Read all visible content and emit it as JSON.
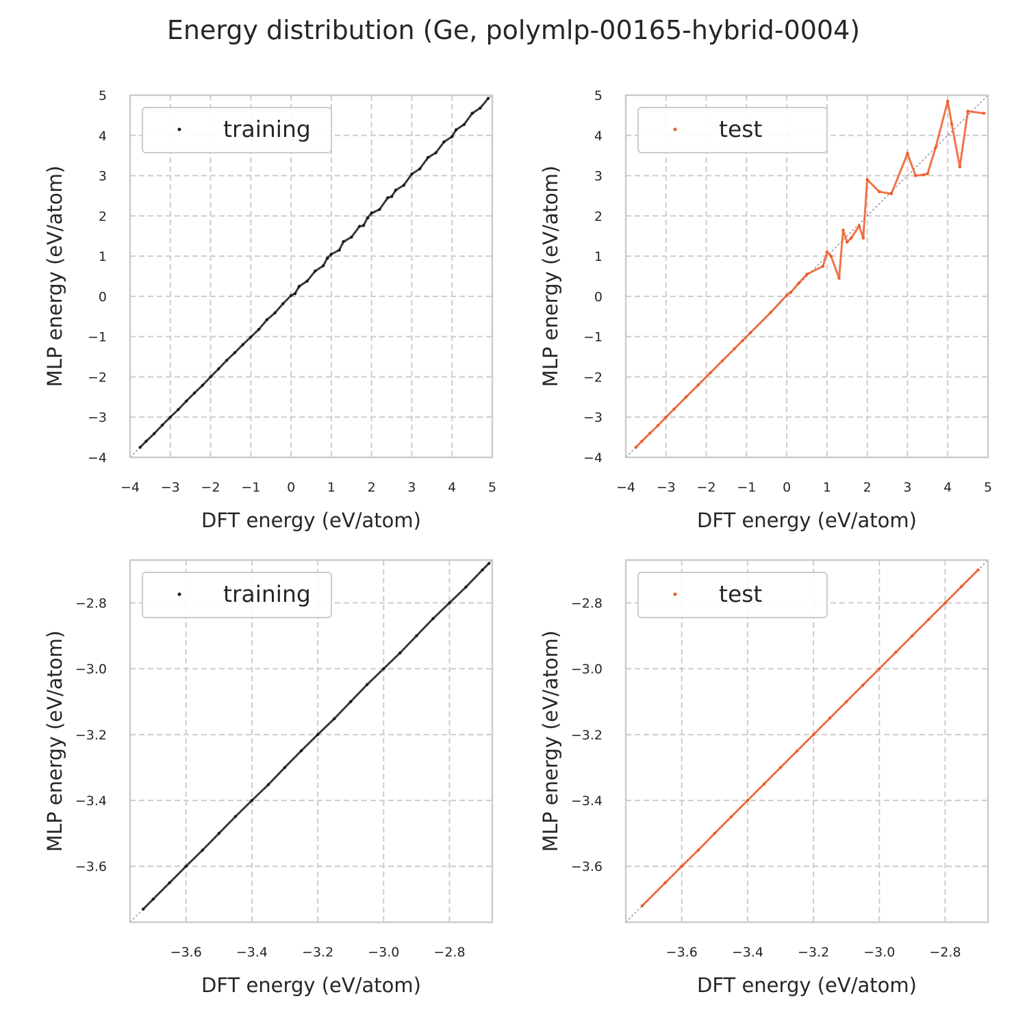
{
  "figure": {
    "title": "Energy distribution (Ge, polymlp-00165-hybrid-0004)"
  },
  "colors": {
    "training": "#1a1a1a",
    "test": "#f05a28",
    "grid": "#cccccc",
    "frame": "#cccccc",
    "diagonal": "#666666"
  },
  "chart_data": [
    {
      "type": "scatter",
      "panel": "top-left",
      "xlabel": "DFT energy (eV/atom)",
      "ylabel": "MLP energy (eV/atom)",
      "xlim": [
        -4,
        5
      ],
      "ylim": [
        -4,
        5
      ],
      "xticks": [
        -4,
        -3,
        -2,
        -1,
        0,
        1,
        2,
        3,
        4,
        5
      ],
      "yticks": [
        -4,
        -3,
        -2,
        -1,
        0,
        1,
        2,
        3,
        4,
        5
      ],
      "xtick_labels": [
        "−4",
        "−3",
        "−2",
        "−1",
        "0",
        "1",
        "2",
        "3",
        "4",
        "5"
      ],
      "ytick_labels": [
        "−4",
        "−3",
        "−2",
        "−1",
        "0",
        "1",
        "2",
        "3",
        "4",
        "5"
      ],
      "grid": true,
      "legend_position": "upper-left",
      "diagonal": true,
      "series": [
        {
          "name": "training",
          "color": "#1a1a1a",
          "points": [
            [
              -3.75,
              -3.75
            ],
            [
              -3.6,
              -3.6
            ],
            [
              -3.4,
              -3.41
            ],
            [
              -3.2,
              -3.2
            ],
            [
              -3.0,
              -3.0
            ],
            [
              -2.8,
              -2.81
            ],
            [
              -2.6,
              -2.6
            ],
            [
              -2.4,
              -2.4
            ],
            [
              -2.2,
              -2.21
            ],
            [
              -2.0,
              -2.0
            ],
            [
              -1.8,
              -1.8
            ],
            [
              -1.6,
              -1.59
            ],
            [
              -1.4,
              -1.4
            ],
            [
              -1.2,
              -1.2
            ],
            [
              -1.0,
              -1.01
            ],
            [
              -0.8,
              -0.82
            ],
            [
              -0.6,
              -0.58
            ],
            [
              -0.4,
              -0.41
            ],
            [
              -0.2,
              -0.18
            ],
            [
              0.0,
              0.02
            ],
            [
              0.1,
              0.07
            ],
            [
              0.2,
              0.25
            ],
            [
              0.4,
              0.38
            ],
            [
              0.6,
              0.63
            ],
            [
              0.8,
              0.76
            ],
            [
              0.9,
              0.95
            ],
            [
              1.0,
              1.05
            ],
            [
              1.2,
              1.15
            ],
            [
              1.3,
              1.36
            ],
            [
              1.5,
              1.47
            ],
            [
              1.7,
              1.74
            ],
            [
              1.8,
              1.76
            ],
            [
              1.9,
              1.95
            ],
            [
              2.0,
              2.07
            ],
            [
              2.2,
              2.16
            ],
            [
              2.4,
              2.45
            ],
            [
              2.5,
              2.48
            ],
            [
              2.6,
              2.64
            ],
            [
              2.8,
              2.76
            ],
            [
              3.0,
              3.04
            ],
            [
              3.2,
              3.17
            ],
            [
              3.4,
              3.45
            ],
            [
              3.6,
              3.57
            ],
            [
              3.8,
              3.84
            ],
            [
              4.0,
              3.97
            ],
            [
              4.1,
              4.14
            ],
            [
              4.3,
              4.27
            ],
            [
              4.5,
              4.55
            ],
            [
              4.7,
              4.68
            ],
            [
              4.9,
              4.92
            ]
          ]
        }
      ]
    },
    {
      "type": "scatter",
      "panel": "top-right",
      "xlabel": "DFT energy (eV/atom)",
      "ylabel": "MLP energy (eV/atom)",
      "xlim": [
        -4,
        5
      ],
      "ylim": [
        -4,
        5
      ],
      "xticks": [
        -4,
        -3,
        -2,
        -1,
        0,
        1,
        2,
        3,
        4,
        5
      ],
      "yticks": [
        -4,
        -3,
        -2,
        -1,
        0,
        1,
        2,
        3,
        4,
        5
      ],
      "xtick_labels": [
        "−4",
        "−3",
        "−2",
        "−1",
        "0",
        "1",
        "2",
        "3",
        "4",
        "5"
      ],
      "ytick_labels": [
        "−4",
        "−3",
        "−2",
        "−1",
        "0",
        "1",
        "2",
        "3",
        "4",
        "5"
      ],
      "grid": true,
      "legend_position": "upper-left",
      "diagonal": true,
      "series": [
        {
          "name": "test",
          "color": "#f05a28",
          "points": [
            [
              -3.75,
              -3.75
            ],
            [
              -3.6,
              -3.6
            ],
            [
              -3.4,
              -3.4
            ],
            [
              -3.2,
              -3.21
            ],
            [
              -3.0,
              -3.0
            ],
            [
              -2.8,
              -2.8
            ],
            [
              -2.5,
              -2.5
            ],
            [
              -2.2,
              -2.2
            ],
            [
              -1.9,
              -1.9
            ],
            [
              -1.6,
              -1.6
            ],
            [
              -1.3,
              -1.3
            ],
            [
              -1.1,
              -1.1
            ],
            [
              -0.9,
              -0.9
            ],
            [
              -0.4,
              -0.4
            ],
            [
              0.0,
              0.03
            ],
            [
              0.1,
              0.1
            ],
            [
              0.3,
              0.33
            ],
            [
              0.5,
              0.55
            ],
            [
              0.9,
              0.75
            ],
            [
              1.0,
              1.1
            ],
            [
              1.1,
              1.0
            ],
            [
              1.3,
              0.45
            ],
            [
              1.4,
              1.65
            ],
            [
              1.5,
              1.35
            ],
            [
              1.6,
              1.45
            ],
            [
              1.8,
              1.75
            ],
            [
              1.9,
              1.45
            ],
            [
              2.0,
              2.9
            ],
            [
              2.3,
              2.6
            ],
            [
              2.6,
              2.55
            ],
            [
              3.0,
              3.55
            ],
            [
              3.2,
              3.0
            ],
            [
              3.4,
              3.02
            ],
            [
              3.5,
              3.05
            ],
            [
              3.7,
              3.7
            ],
            [
              4.0,
              4.85
            ],
            [
              4.1,
              4.28
            ],
            [
              4.3,
              3.22
            ],
            [
              4.5,
              4.6
            ],
            [
              4.9,
              4.55
            ]
          ]
        }
      ]
    },
    {
      "type": "scatter",
      "panel": "bottom-left",
      "xlabel": "DFT energy (eV/atom)",
      "ylabel": "MLP energy (eV/atom)",
      "xlim": [
        -3.77,
        -2.67
      ],
      "ylim": [
        -3.77,
        -2.67
      ],
      "xticks": [
        -3.6,
        -3.4,
        -3.2,
        -3.0,
        -2.8
      ],
      "yticks": [
        -3.6,
        -3.4,
        -3.2,
        -3.0,
        -2.8
      ],
      "xtick_labels": [
        "−3.6",
        "−3.4",
        "−3.2",
        "−3.0",
        "−2.8"
      ],
      "ytick_labels": [
        "−3.6",
        "−3.4",
        "−3.2",
        "−3.0",
        "−2.8"
      ],
      "grid": true,
      "legend_position": "upper-left",
      "diagonal": true,
      "series": [
        {
          "name": "training",
          "color": "#1a1a1a",
          "points": [
            [
              -3.73,
              -3.73
            ],
            [
              -3.7,
              -3.7
            ],
            [
              -3.65,
              -3.65
            ],
            [
              -3.6,
              -3.6
            ],
            [
              -3.55,
              -3.551
            ],
            [
              -3.5,
              -3.5
            ],
            [
              -3.45,
              -3.449
            ],
            [
              -3.4,
              -3.4
            ],
            [
              -3.35,
              -3.352
            ],
            [
              -3.3,
              -3.3
            ],
            [
              -3.25,
              -3.249
            ],
            [
              -3.2,
              -3.2
            ],
            [
              -3.15,
              -3.152
            ],
            [
              -3.1,
              -3.1
            ],
            [
              -3.05,
              -3.048
            ],
            [
              -3.0,
              -3.0
            ],
            [
              -2.95,
              -2.952
            ],
            [
              -2.9,
              -2.9
            ],
            [
              -2.85,
              -2.848
            ],
            [
              -2.8,
              -2.8
            ],
            [
              -2.75,
              -2.752
            ],
            [
              -2.7,
              -2.7
            ],
            [
              -2.68,
              -2.68
            ]
          ]
        }
      ]
    },
    {
      "type": "scatter",
      "panel": "bottom-right",
      "xlabel": "DFT energy (eV/atom)",
      "ylabel": "MLP energy (eV/atom)",
      "xlim": [
        -3.77,
        -2.67
      ],
      "ylim": [
        -3.77,
        -2.67
      ],
      "xticks": [
        -3.6,
        -3.4,
        -3.2,
        -3.0,
        -2.8
      ],
      "yticks": [
        -3.6,
        -3.4,
        -3.2,
        -3.0,
        -2.8
      ],
      "xtick_labels": [
        "−3.6",
        "−3.4",
        "−3.2",
        "−3.0",
        "−2.8"
      ],
      "ytick_labels": [
        "−3.6",
        "−3.4",
        "−3.2",
        "−3.0",
        "−2.8"
      ],
      "grid": true,
      "legend_position": "upper-left",
      "diagonal": true,
      "series": [
        {
          "name": "test",
          "color": "#f05a28",
          "points": [
            [
              -3.72,
              -3.72
            ],
            [
              -3.65,
              -3.65
            ],
            [
              -3.6,
              -3.6
            ],
            [
              -3.55,
              -3.551
            ],
            [
              -3.5,
              -3.5
            ],
            [
              -3.45,
              -3.45
            ],
            [
              -3.4,
              -3.4
            ],
            [
              -3.35,
              -3.35
            ],
            [
              -3.3,
              -3.3
            ],
            [
              -3.25,
              -3.25
            ],
            [
              -3.2,
              -3.2
            ],
            [
              -3.15,
              -3.15
            ],
            [
              -3.1,
              -3.1
            ],
            [
              -3.05,
              -3.05
            ],
            [
              -3.0,
              -3.0
            ],
            [
              -2.95,
              -2.95
            ],
            [
              -2.9,
              -2.9
            ],
            [
              -2.85,
              -2.85
            ],
            [
              -2.8,
              -2.8
            ],
            [
              -2.75,
              -2.75
            ],
            [
              -2.7,
              -2.7
            ]
          ]
        }
      ]
    }
  ]
}
